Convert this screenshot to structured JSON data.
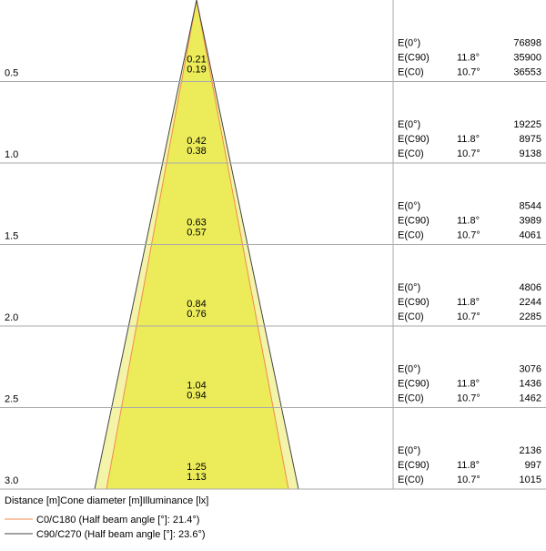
{
  "rows": [
    {
      "distance": "0.5",
      "diameter_outer": "0.21",
      "diameter_inner": "0.19",
      "e0_label": "E(0°)",
      "e0": "76898",
      "c90_label": "E(C90)",
      "c90_angle": "11.8°",
      "c90": "35900",
      "c0_label": "E(C0)",
      "c0_angle": "10.7°",
      "c0": "36553"
    },
    {
      "distance": "1.0",
      "diameter_outer": "0.42",
      "diameter_inner": "0.38",
      "e0_label": "E(0°)",
      "e0": "19225",
      "c90_label": "E(C90)",
      "c90_angle": "11.8°",
      "c90": "8975",
      "c0_label": "E(C0)",
      "c0_angle": "10.7°",
      "c0": "9138"
    },
    {
      "distance": "1.5",
      "diameter_outer": "0.63",
      "diameter_inner": "0.57",
      "e0_label": "E(0°)",
      "e0": "8544",
      "c90_label": "E(C90)",
      "c90_angle": "11.8°",
      "c90": "3989",
      "c0_label": "E(C0)",
      "c0_angle": "10.7°",
      "c0": "4061"
    },
    {
      "distance": "2.0",
      "diameter_outer": "0.84",
      "diameter_inner": "0.76",
      "e0_label": "E(0°)",
      "e0": "4806",
      "c90_label": "E(C90)",
      "c90_angle": "11.8°",
      "c90": "2244",
      "c0_label": "E(C0)",
      "c0_angle": "10.7°",
      "c0": "2285"
    },
    {
      "distance": "2.5",
      "diameter_outer": "1.04",
      "diameter_inner": "0.94",
      "e0_label": "E(0°)",
      "e0": "3076",
      "c90_label": "E(C90)",
      "c90_angle": "11.8°",
      "c90": "1436",
      "c0_label": "E(C0)",
      "c0_angle": "10.7°",
      "c0": "1462"
    },
    {
      "distance": "3.0",
      "diameter_outer": "1.25",
      "diameter_inner": "1.13",
      "e0_label": "E(0°)",
      "e0": "2136",
      "c90_label": "E(C90)",
      "c90_angle": "11.8°",
      "c90": "997",
      "c0_label": "E(C0)",
      "c0_angle": "10.7°",
      "c0": "1015"
    }
  ],
  "footer": "Distance [m]Cone diameter [m]Illuminance [lx]",
  "legend": [
    "C0/C180 (Half beam angle [°]: 21.4°)",
    "C90/C270 (Half beam angle [°]: 23.6°)"
  ]
}
